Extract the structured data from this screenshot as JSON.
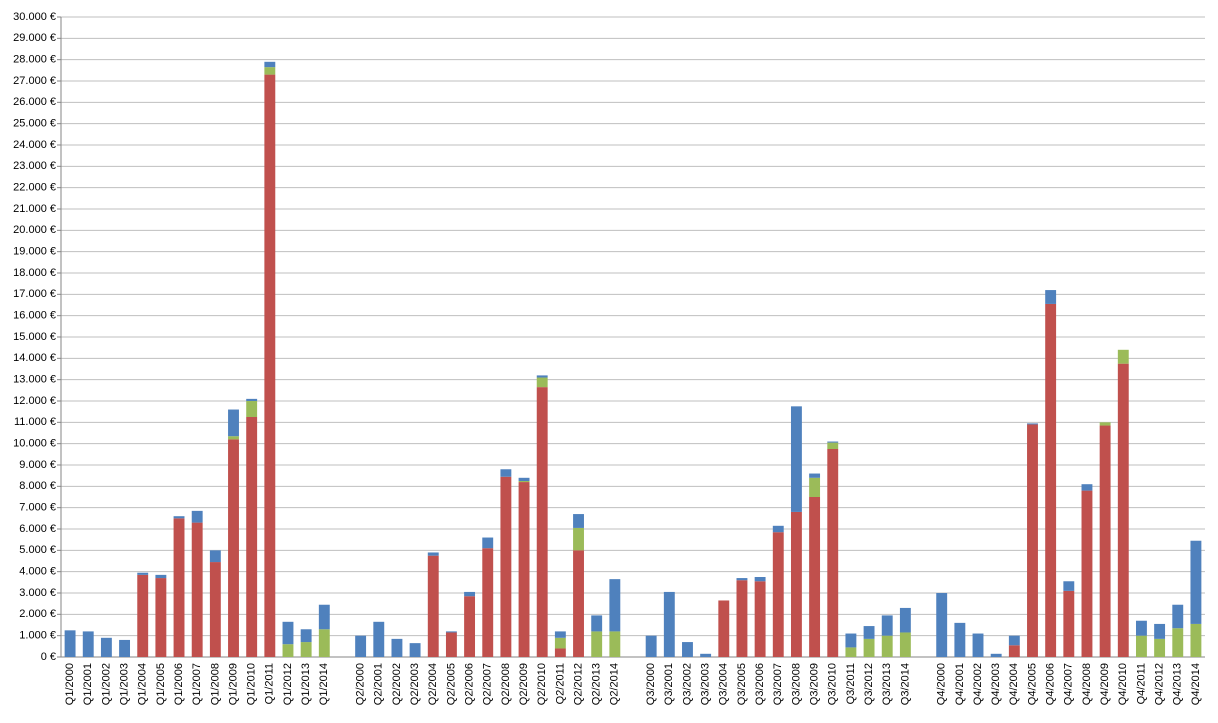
{
  "chart_data": {
    "type": "stacked-bar",
    "categories": [
      "Q1/2000",
      "Q1/2001",
      "Q1/2002",
      "Q1/2003",
      "Q1/2004",
      "Q1/2005",
      "Q1/2006",
      "Q1/2007",
      "Q1/2008",
      "Q1/2009",
      "Q1/2010",
      "Q1/2011",
      "Q1/2012",
      "Q1/2013",
      "Q1/2014",
      null,
      "Q2/2000",
      "Q2/2001",
      "Q2/2002",
      "Q2/2003",
      "Q2/2004",
      "Q2/2005",
      "Q2/2006",
      "Q2/2007",
      "Q2/2008",
      "Q2/2009",
      "Q2/2010",
      "Q2/2011",
      "Q2/2012",
      "Q2/2013",
      "Q2/2014",
      null,
      "Q3/2000",
      "Q3/2001",
      "Q3/2002",
      "Q3/2003",
      "Q3/2004",
      "Q3/2005",
      "Q3/2006",
      "Q3/2007",
      "Q3/2008",
      "Q3/2009",
      "Q3/2010",
      "Q3/2011",
      "Q3/2012",
      "Q3/2013",
      "Q3/2014",
      null,
      "Q4/2000",
      "Q4/2001",
      "Q4/2002",
      "Q4/2003",
      "Q4/2004",
      "Q4/2005",
      "Q4/2006",
      "Q4/2007",
      "Q4/2008",
      "Q4/2009",
      "Q4/2010",
      "Q4/2011",
      "Q4/2012",
      "Q4/2013",
      "Q4/2014"
    ],
    "series": [
      {
        "color": "#c0504d",
        "values": [
          0,
          0,
          0,
          0,
          3850,
          3700,
          6500,
          6300,
          4450,
          10200,
          11250,
          27300,
          0,
          0,
          0,
          null,
          0,
          0,
          0,
          0,
          4750,
          1150,
          2850,
          5100,
          8450,
          8200,
          12650,
          400,
          5000,
          0,
          0,
          null,
          0,
          0,
          0,
          0,
          2650,
          3600,
          3550,
          5850,
          6800,
          7500,
          9750,
          0,
          0,
          0,
          0,
          null,
          0,
          0,
          0,
          0,
          550,
          10900,
          16550,
          3100,
          7800,
          10850,
          13750,
          0,
          0,
          0,
          0
        ]
      },
      {
        "color": "#9bbb59",
        "values": [
          0,
          0,
          0,
          0,
          0,
          0,
          0,
          0,
          0,
          150,
          750,
          350,
          600,
          700,
          1300,
          null,
          0,
          0,
          0,
          0,
          0,
          0,
          0,
          0,
          0,
          50,
          450,
          500,
          1050,
          1200,
          1200,
          null,
          0,
          0,
          0,
          0,
          0,
          0,
          0,
          0,
          0,
          900,
          300,
          450,
          850,
          1000,
          1150,
          null,
          0,
          0,
          0,
          0,
          0,
          0,
          0,
          0,
          0,
          150,
          650,
          1000,
          850,
          1350,
          1550
        ]
      },
      {
        "color": "#4f81bd",
        "values": [
          1250,
          1200,
          900,
          800,
          100,
          150,
          100,
          550,
          550,
          1250,
          100,
          250,
          1050,
          600,
          1150,
          null,
          1000,
          1650,
          850,
          650,
          150,
          50,
          200,
          500,
          350,
          150,
          100,
          300,
          650,
          750,
          2450,
          null,
          1000,
          3050,
          700,
          150,
          0,
          100,
          200,
          300,
          4950,
          200,
          50,
          650,
          600,
          950,
          1150,
          null,
          3000,
          1600,
          1100,
          150,
          450,
          50,
          650,
          450,
          300,
          0,
          0,
          700,
          700,
          1100,
          3900
        ]
      }
    ],
    "ylim": [
      0,
      30000
    ],
    "yticks": [
      {
        "value": 0,
        "label": "0 €"
      },
      {
        "value": 1000,
        "label": "1.000 €"
      },
      {
        "value": 2000,
        "label": "2.000 €"
      },
      {
        "value": 3000,
        "label": "3.000 €"
      },
      {
        "value": 4000,
        "label": "4.000 €"
      },
      {
        "value": 5000,
        "label": "5.000 €"
      },
      {
        "value": 6000,
        "label": "6.000 €"
      },
      {
        "value": 7000,
        "label": "7.000 €"
      },
      {
        "value": 8000,
        "label": "8.000 €"
      },
      {
        "value": 9000,
        "label": "9.000 €"
      },
      {
        "value": 10000,
        "label": "10.000 €"
      },
      {
        "value": 11000,
        "label": "11.000 €"
      },
      {
        "value": 12000,
        "label": "12.000 €"
      },
      {
        "value": 13000,
        "label": "13.000 €"
      },
      {
        "value": 14000,
        "label": "14.000 €"
      },
      {
        "value": 15000,
        "label": "15.000 €"
      },
      {
        "value": 16000,
        "label": "16.000 €"
      },
      {
        "value": 17000,
        "label": "17.000 €"
      },
      {
        "value": 18000,
        "label": "18.000 €"
      },
      {
        "value": 19000,
        "label": "19.000 €"
      },
      {
        "value": 20000,
        "label": "20.000 €"
      },
      {
        "value": 21000,
        "label": "21.000 €"
      },
      {
        "value": 22000,
        "label": "22.000 €"
      },
      {
        "value": 23000,
        "label": "23.000 €"
      },
      {
        "value": 24000,
        "label": "24.000 €"
      },
      {
        "value": 25000,
        "label": "25.000 €"
      },
      {
        "value": 26000,
        "label": "26.000 €"
      },
      {
        "value": 27000,
        "label": "27.000 €"
      },
      {
        "value": 28000,
        "label": "28.000 €"
      },
      {
        "value": 29000,
        "label": "29.000 €"
      },
      {
        "value": 30000,
        "label": "30.000 €"
      }
    ],
    "grid": true
  }
}
